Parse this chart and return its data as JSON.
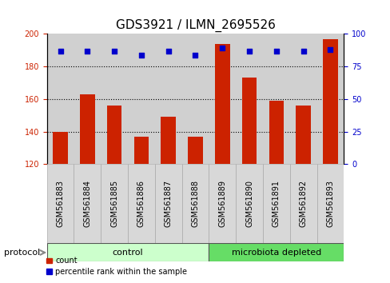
{
  "title": "GDS3921 / ILMN_2695526",
  "samples": [
    "GSM561883",
    "GSM561884",
    "GSM561885",
    "GSM561886",
    "GSM561887",
    "GSM561888",
    "GSM561889",
    "GSM561890",
    "GSM561891",
    "GSM561892",
    "GSM561893"
  ],
  "counts": [
    140,
    163,
    156,
    137,
    149,
    137,
    194,
    173,
    159,
    156,
    197
  ],
  "percentile_ranks": [
    87,
    87,
    87,
    84,
    87,
    84,
    89,
    87,
    87,
    87,
    88
  ],
  "ylim_left": [
    120,
    200
  ],
  "ylim_right": [
    0,
    100
  ],
  "yticks_left": [
    120,
    140,
    160,
    180,
    200
  ],
  "yticks_right": [
    0,
    25,
    50,
    75,
    100
  ],
  "bar_color": "#cc2200",
  "dot_color": "#0000cc",
  "plot_bg": "#ffffff",
  "control_color": "#ccffcc",
  "microbiota_color": "#66dd66",
  "control_label": "control",
  "microbiota_label": "microbiota depleted",
  "protocol_label": "protocol",
  "legend_count_label": "count",
  "legend_pct_label": "percentile rank within the sample",
  "n_control": 6,
  "n_microbiota": 5,
  "title_fontsize": 11,
  "tick_fontsize": 7,
  "label_fontsize": 8,
  "bar_width": 0.55
}
